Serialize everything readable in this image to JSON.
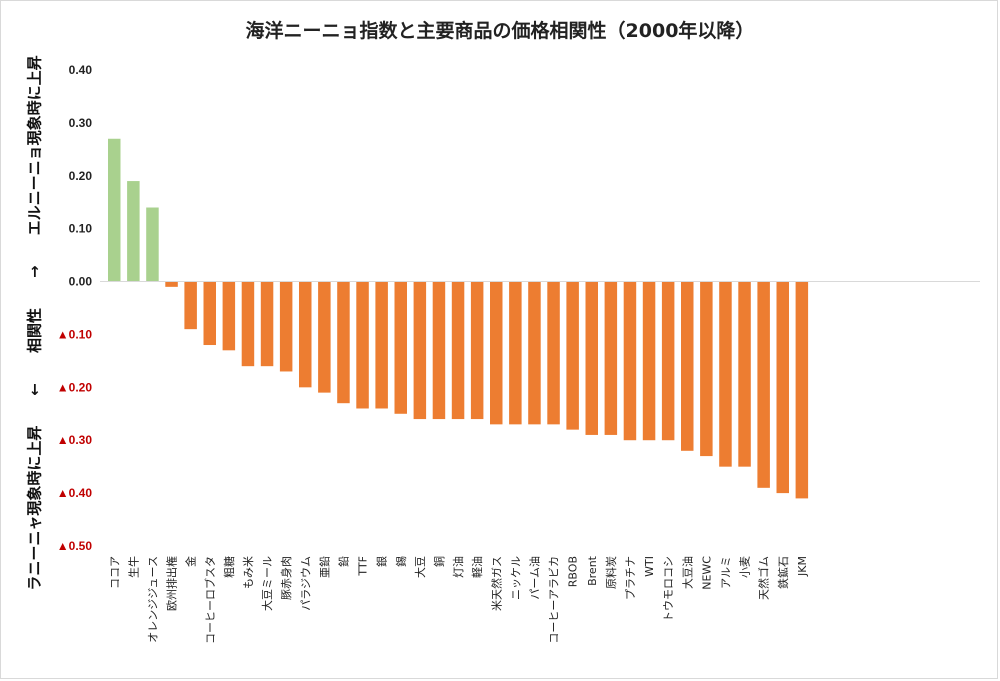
{
  "chart_data": {
    "type": "bar",
    "title": "海洋ニーニョ指数と主要商品の価格相関性（2000年以降）",
    "ylabel_parts": [
      "ラニーニャ現象時に上昇",
      "←",
      "相関性",
      "→",
      "エルニーニョ現象時に上昇"
    ],
    "ylim": [
      -0.5,
      0.4
    ],
    "yticks": [
      0.4,
      0.3,
      0.2,
      0.1,
      0.0,
      -0.1,
      -0.2,
      -0.3,
      -0.4,
      -0.5
    ],
    "ytick_labels": [
      "0.40",
      "0.30",
      "0.20",
      "0.10",
      "0.00",
      "▲0.10",
      "▲0.20",
      "▲0.30",
      "▲0.40",
      "▲0.50"
    ],
    "categories": [
      "ココア",
      "生牛",
      "オレンジジュース",
      "欧州排出権",
      "金",
      "コーヒーロブスタ",
      "粗糖",
      "もみ米",
      "大豆ミール",
      "豚赤身肉",
      "パラジウム",
      "亜鉛",
      "鉛",
      "TTF",
      "銀",
      "錫",
      "大豆",
      "銅",
      "灯油",
      "軽油",
      "米天然ガス",
      "ニッケル",
      "パーム油",
      "コーヒーアラビカ",
      "RBOB",
      "Brent",
      "原料炭",
      "プラチナ",
      "WTI",
      "トウモロコシ",
      "大豆油",
      "NEWC",
      "アルミ",
      "小麦",
      "天然ゴム",
      "鉄鉱石",
      "JKM"
    ],
    "values": [
      0.27,
      0.19,
      0.14,
      -0.01,
      -0.09,
      -0.12,
      -0.13,
      -0.16,
      -0.16,
      -0.17,
      -0.2,
      -0.21,
      -0.23,
      -0.24,
      -0.24,
      -0.25,
      -0.26,
      -0.26,
      -0.26,
      -0.26,
      -0.27,
      -0.27,
      -0.27,
      -0.27,
      -0.28,
      -0.29,
      -0.29,
      -0.3,
      -0.3,
      -0.3,
      -0.32,
      -0.33,
      -0.35,
      -0.35,
      -0.39,
      -0.4,
      -0.41
    ],
    "colors": {
      "positive": "#a9d18e",
      "negative": "#ed7d31",
      "axis": "#d9d9d9",
      "neg_tick": "#c00000"
    },
    "grid": false,
    "legend": "none"
  }
}
